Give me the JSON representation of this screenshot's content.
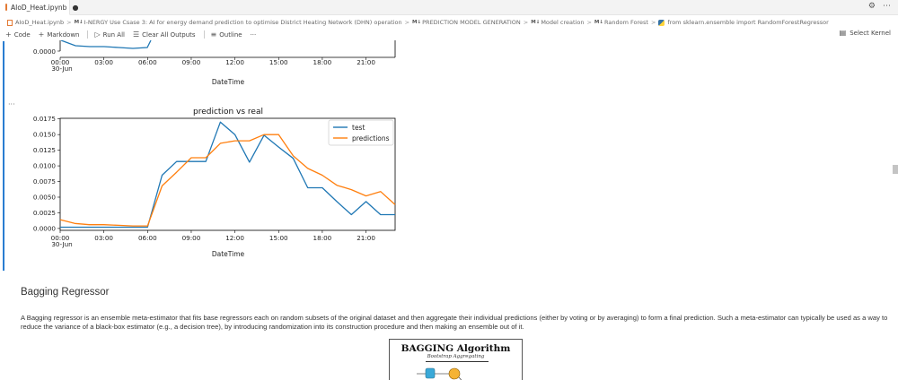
{
  "tab": {
    "title": "AIoD_Heat.ipynb",
    "modified_dot": "●"
  },
  "breadcrumb": {
    "file": "AIoD_Heat.ipynb",
    "md_tag": "M↓",
    "items": [
      "I-NERGY Use Csase 3: AI for energy demand prediction to optimise District Heating Network (DHN) operation",
      "PREDICTION MODEL GENERATION",
      "Model creation",
      "Random Forest",
      "from sklearn.ensemble import RandomForestRegressor"
    ],
    "separator": ">"
  },
  "toolbar": {
    "code": "Code",
    "markdown": "Markdown",
    "run_all": "Run All",
    "clear_outputs": "Clear All Outputs",
    "outline": "Outline",
    "more": "···",
    "select_kernel": "Select Kernel"
  },
  "cell": {
    "output_ellipsis": "···"
  },
  "chart_top": {
    "ytick_visible": "0.0000",
    "xticks": [
      "00:00",
      "03:00",
      "06:00",
      "09:00",
      "12:00",
      "15:00",
      "18:00",
      "21:00"
    ],
    "xtick_sub": "30-Jun",
    "xlabel": "DateTime"
  },
  "chart_data": {
    "type": "line",
    "title": "prediction vs real",
    "xlabel": "DateTime",
    "ylabel": "",
    "x": [
      "00:00",
      "01:00",
      "02:00",
      "03:00",
      "04:00",
      "05:00",
      "06:00",
      "07:00",
      "08:00",
      "09:00",
      "10:00",
      "11:00",
      "12:00",
      "13:00",
      "14:00",
      "15:00",
      "16:00",
      "17:00",
      "18:00",
      "19:00",
      "20:00",
      "21:00",
      "22:00",
      "23:00"
    ],
    "xticks": [
      "00:00",
      "03:00",
      "06:00",
      "09:00",
      "12:00",
      "15:00",
      "18:00",
      "21:00"
    ],
    "xtick_sub": "30-Jun",
    "yticks": [
      "0.0000",
      "0.0025",
      "0.0050",
      "0.0075",
      "0.0100",
      "0.0125",
      "0.0150",
      "0.0175"
    ],
    "ylim": [
      -0.0003,
      0.0176
    ],
    "legend_position": "top-right",
    "series": [
      {
        "name": "test",
        "color": "#1f77b4",
        "values": [
          0.0002,
          0.0002,
          0.0002,
          0.0002,
          0.0002,
          0.0002,
          0.0002,
          0.0085,
          0.0107,
          0.0107,
          0.0107,
          0.017,
          0.015,
          0.0106,
          0.0149,
          0.013,
          0.0112,
          0.0065,
          0.0065,
          0.0043,
          0.0022,
          0.0043,
          0.0022,
          0.0022
        ]
      },
      {
        "name": "predictions",
        "color": "#ff7f0e",
        "values": [
          0.0014,
          0.0008,
          0.0006,
          0.0006,
          0.0005,
          0.0004,
          0.0004,
          0.0068,
          0.009,
          0.0113,
          0.0113,
          0.0136,
          0.014,
          0.014,
          0.015,
          0.015,
          0.0116,
          0.0096,
          0.0085,
          0.0069,
          0.0062,
          0.0052,
          0.0059,
          0.0038
        ]
      }
    ]
  },
  "markdown": {
    "heading": "Bagging Regressor",
    "paragraph": "A Bagging regressor is an ensemble meta-estimator that fits base regressors each on random subsets of the original dataset and then aggregate their individual predictions (either by voting or by averaging) to form a final prediction. Such a meta-estimator can typically be used as a way to reduce the variance of a black-box estimator (e.g., a decision tree), by introducing randomization into its construction procedure and then making an ensemble out of it."
  },
  "bagging_image": {
    "title": "BAGGING Algorithm",
    "subtitle": "Bootstrap Aggregating"
  }
}
